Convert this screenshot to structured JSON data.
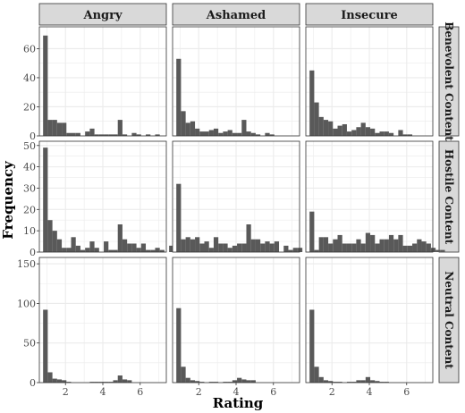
{
  "chart_data": {
    "type": "bar",
    "subtype": "faceted-histogram",
    "xlabel": "Rating",
    "ylabel": "Frequency",
    "columns": [
      "Angry",
      "Ashamed",
      "Insecure"
    ],
    "rows": [
      {
        "label": "Benevolent Content",
        "ylim": [
          0,
          75
        ],
        "yticks": [
          0,
          20,
          40,
          60
        ]
      },
      {
        "label": "Hostile Content",
        "ylim": [
          0,
          52
        ],
        "yticks": [
          0,
          10,
          20,
          30,
          40,
          50
        ]
      },
      {
        "label": "Neutral Content",
        "ylim": [
          0,
          158
        ],
        "yticks": [
          0,
          50,
          100,
          150
        ]
      }
    ],
    "xlim": [
      0.6,
      7.4
    ],
    "xticks": [
      2,
      4,
      6
    ],
    "bin_start": 0.8,
    "bin_width": 0.25,
    "bar_color": "#595959",
    "panel_background": "#ffffff",
    "grid_color": "#ebebeb",
    "strip_fill": "#d9d9d9",
    "grid": true,
    "panels": [
      [
        [
          69,
          11,
          11,
          9,
          9,
          2,
          2,
          2,
          0,
          3,
          5,
          1,
          1,
          1,
          1,
          1,
          11,
          1,
          0,
          2,
          1,
          0,
          1,
          0,
          1,
          0,
          0,
          0,
          0,
          0
        ],
        [
          49,
          15,
          10,
          6,
          2,
          2,
          7,
          3,
          1,
          2,
          5,
          2,
          0,
          5,
          1,
          1,
          13,
          6,
          4,
          4,
          2,
          4,
          1,
          1,
          2,
          1,
          0,
          3,
          0,
          1
        ],
        [
          92,
          13,
          5,
          4,
          3,
          1,
          0,
          0,
          0,
          0,
          1,
          1,
          1,
          1,
          1,
          3,
          9,
          4,
          3,
          0,
          0,
          0,
          0,
          0,
          0,
          0,
          0,
          0,
          0,
          0
        ]
      ],
      [
        [
          53,
          17,
          9,
          10,
          5,
          3,
          3,
          4,
          5,
          2,
          3,
          4,
          2,
          2,
          11,
          3,
          2,
          1,
          0,
          2,
          1,
          0,
          0,
          0,
          0,
          0,
          0,
          0,
          0,
          0
        ],
        [
          32,
          6,
          7,
          6,
          7,
          4,
          5,
          2,
          7,
          4,
          4,
          2,
          3,
          4,
          4,
          13,
          6,
          6,
          4,
          5,
          4,
          5,
          0,
          3,
          1,
          2,
          2,
          0,
          0,
          0
        ],
        [
          94,
          20,
          6,
          3,
          2,
          1,
          0,
          1,
          1,
          0,
          1,
          1,
          3,
          6,
          4,
          3,
          3,
          0,
          0,
          0,
          0,
          0,
          0,
          0,
          0,
          0,
          0,
          0,
          0,
          0
        ]
      ],
      [
        [
          45,
          23,
          13,
          11,
          10,
          5,
          7,
          8,
          3,
          4,
          6,
          9,
          6,
          5,
          2,
          3,
          3,
          2,
          0,
          4,
          1,
          1,
          0,
          0,
          0,
          0,
          0,
          0,
          0,
          0
        ],
        [
          19,
          1,
          7,
          7,
          4,
          6,
          8,
          4,
          4,
          4,
          6,
          4,
          9,
          8,
          4,
          6,
          6,
          8,
          6,
          8,
          3,
          3,
          4,
          6,
          5,
          4,
          2,
          1,
          1,
          0
        ],
        [
          92,
          20,
          7,
          3,
          2,
          1,
          1,
          0,
          1,
          1,
          3,
          3,
          7,
          3,
          2,
          1,
          1,
          0,
          0,
          0,
          0,
          0,
          0,
          0,
          0,
          0,
          0,
          0,
          0,
          0
        ]
      ]
    ]
  }
}
